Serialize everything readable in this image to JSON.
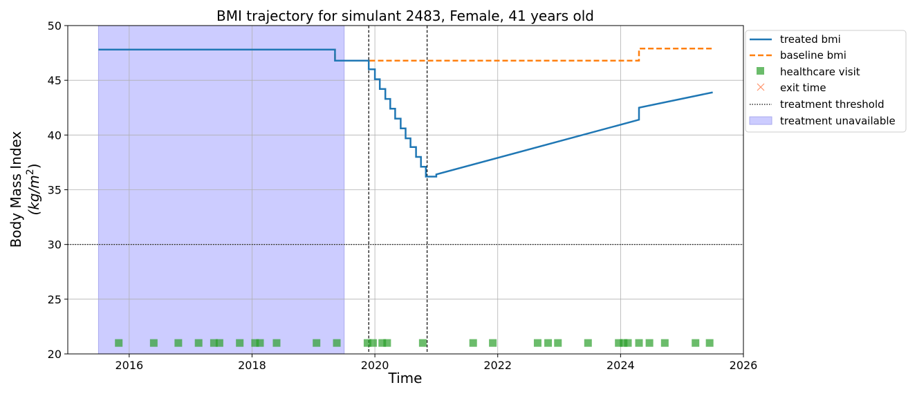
{
  "chart_data": {
    "type": "line",
    "title": "BMI trajectory for simulant 2483, Female, 41 years old",
    "xlabel": "Time",
    "ylabel_line1": "Body Mass Index",
    "ylabel_line2_unit": "(kg/m",
    "ylabel_line2_exp": "2",
    "ylabel_line2_close": ")",
    "xlim": [
      2015.0,
      2026.0
    ],
    "ylim": [
      20,
      50
    ],
    "xticks": [
      2016,
      2018,
      2020,
      2022,
      2024,
      2026
    ],
    "xtick_labels": [
      "2016",
      "2018",
      "2020",
      "2022",
      "2024",
      "2026"
    ],
    "yticks": [
      20,
      25,
      30,
      35,
      40,
      45,
      50
    ],
    "ytick_labels": [
      "20",
      "25",
      "30",
      "35",
      "40",
      "45",
      "50"
    ],
    "grid": true,
    "legend_position": "outside-top-right",
    "series": [
      {
        "name": "treated bmi",
        "style": "solid-step",
        "color": "#1f77b4",
        "x": [
          2015.5,
          2019.35,
          2019.35,
          2019.9,
          2019.9,
          2020.0,
          2020.0,
          2020.08,
          2020.08,
          2020.17,
          2020.17,
          2020.25,
          2020.25,
          2020.33,
          2020.33,
          2020.42,
          2020.42,
          2020.5,
          2020.5,
          2020.58,
          2020.58,
          2020.67,
          2020.67,
          2020.75,
          2020.75,
          2020.83,
          2020.83,
          2021.0,
          2021.0,
          2024.3,
          2024.3,
          2025.5
        ],
        "y": [
          47.8,
          47.8,
          46.8,
          46.8,
          46.0,
          46.0,
          45.1,
          45.1,
          44.2,
          44.2,
          43.3,
          43.3,
          42.4,
          42.4,
          41.5,
          41.5,
          40.6,
          40.6,
          39.7,
          39.7,
          38.9,
          38.9,
          38.0,
          38.0,
          37.1,
          37.1,
          36.2,
          36.2,
          36.4,
          41.4,
          42.5,
          43.9
        ]
      },
      {
        "name": "baseline bmi",
        "style": "dashed-step",
        "color": "#ff7f0e",
        "x": [
          2015.5,
          2019.35,
          2019.35,
          2024.3,
          2024.3,
          2025.5
        ],
        "y": [
          47.8,
          47.8,
          46.8,
          46.8,
          47.9,
          47.9
        ]
      }
    ],
    "healthcare_visits": {
      "name": "healthcare visit",
      "color": "#2ca02c",
      "y": 21,
      "x": [
        2015.83,
        2016.4,
        2016.8,
        2017.13,
        2017.38,
        2017.47,
        2017.8,
        2018.05,
        2018.13,
        2018.4,
        2019.05,
        2019.38,
        2019.88,
        2019.97,
        2020.12,
        2020.2,
        2020.78,
        2021.6,
        2021.92,
        2022.65,
        2022.82,
        2022.98,
        2023.47,
        2023.97,
        2024.05,
        2024.12,
        2024.3,
        2024.47,
        2024.72,
        2025.22,
        2025.45
      ]
    },
    "exit_time": {
      "name": "exit time",
      "color": "#ff7f50"
    },
    "threshold": {
      "name": "treatment threshold",
      "y": 30
    },
    "vertical_markers": [
      2019.9,
      2020.85
    ],
    "unavailable_span": {
      "name": "treatment unavailable",
      "x": [
        2015.5,
        2019.5
      ],
      "color": "#ccccff"
    }
  }
}
